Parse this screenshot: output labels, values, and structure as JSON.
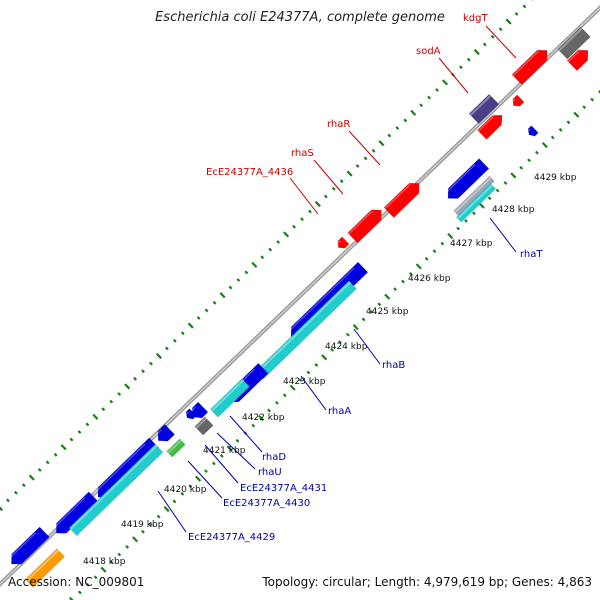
{
  "title": "Escherichia coli E24377A, complete genome",
  "accession": "Accession: NC_009801",
  "summary": "Topology: circular; Length: 4,979,619 bp; Genes: 4,863",
  "colors": {
    "backbone": "#999999",
    "forward_cds": "#ff0000",
    "reverse_cds": "#0000e0",
    "forward_label": "#cc0000",
    "reverse_label": "#0000aa",
    "cds_track": "#22cccc",
    "tick_dots": "#1a7f1a",
    "gray_feature": "#666666",
    "purple_feature": "#4b3f8a",
    "green_feature": "#44bb44",
    "orange_feature": "#ff9900"
  },
  "positions": [
    "4418 kbp",
    "4419 kbp",
    "4420 kbp",
    "4421 kbp",
    "4422 kbp",
    "4423 kbp",
    "4424 kbp",
    "4425 kbp",
    "4426 kbp",
    "4427 kbp",
    "4428 kbp",
    "4429 kbp"
  ],
  "forward_labels": [
    "kdgT",
    "sodA",
    "rhaR",
    "rhaS",
    "EcE24377A_4436"
  ],
  "reverse_labels": [
    "rhaT",
    "rhaB",
    "rhaA",
    "rhaD",
    "rhaU",
    "EcE24377A_4431",
    "EcE24377A_4430",
    "EcE24377A_4429"
  ]
}
